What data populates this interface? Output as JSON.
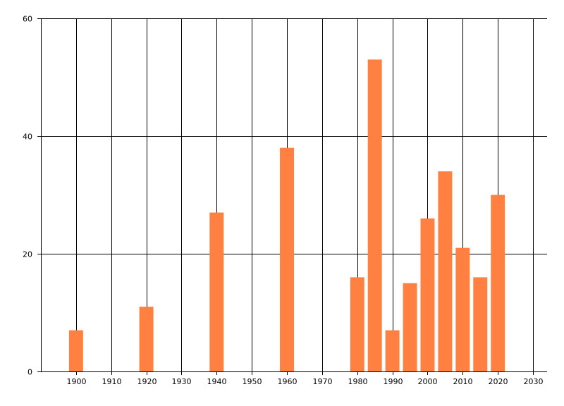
{
  "chart_data": {
    "type": "bar",
    "title": "",
    "xlabel": "",
    "ylabel": "",
    "x": [
      1900,
      1920,
      1940,
      1960,
      1980,
      1985,
      1990,
      1995,
      2000,
      2005,
      2010,
      2015,
      2020
    ],
    "values": [
      7,
      11,
      27,
      38,
      16,
      53,
      7,
      15,
      26,
      34,
      21,
      16,
      30
    ],
    "xlim": [
      1890,
      2034
    ],
    "ylim": [
      0,
      60
    ],
    "x_ticks": [
      1900,
      1910,
      1920,
      1930,
      1940,
      1950,
      1960,
      1970,
      1980,
      1990,
      2000,
      2010,
      2020,
      2030
    ],
    "x_tick_labels": [
      "1900",
      "1910",
      "1920",
      "1930",
      "1940",
      "1950",
      "1960",
      "1970",
      "1980",
      "1990",
      "2000",
      "2010",
      "2020",
      "2030"
    ],
    "y_ticks": [
      0,
      20,
      40,
      60
    ],
    "y_tick_labels": [
      "0",
      "20",
      "40",
      "60"
    ],
    "bar_width_years": 4,
    "grid": "on",
    "legend": "none",
    "colors": {
      "bar": "#FF8040",
      "axis": "#000000",
      "grid": "#000000",
      "background": "#ffffff"
    }
  }
}
